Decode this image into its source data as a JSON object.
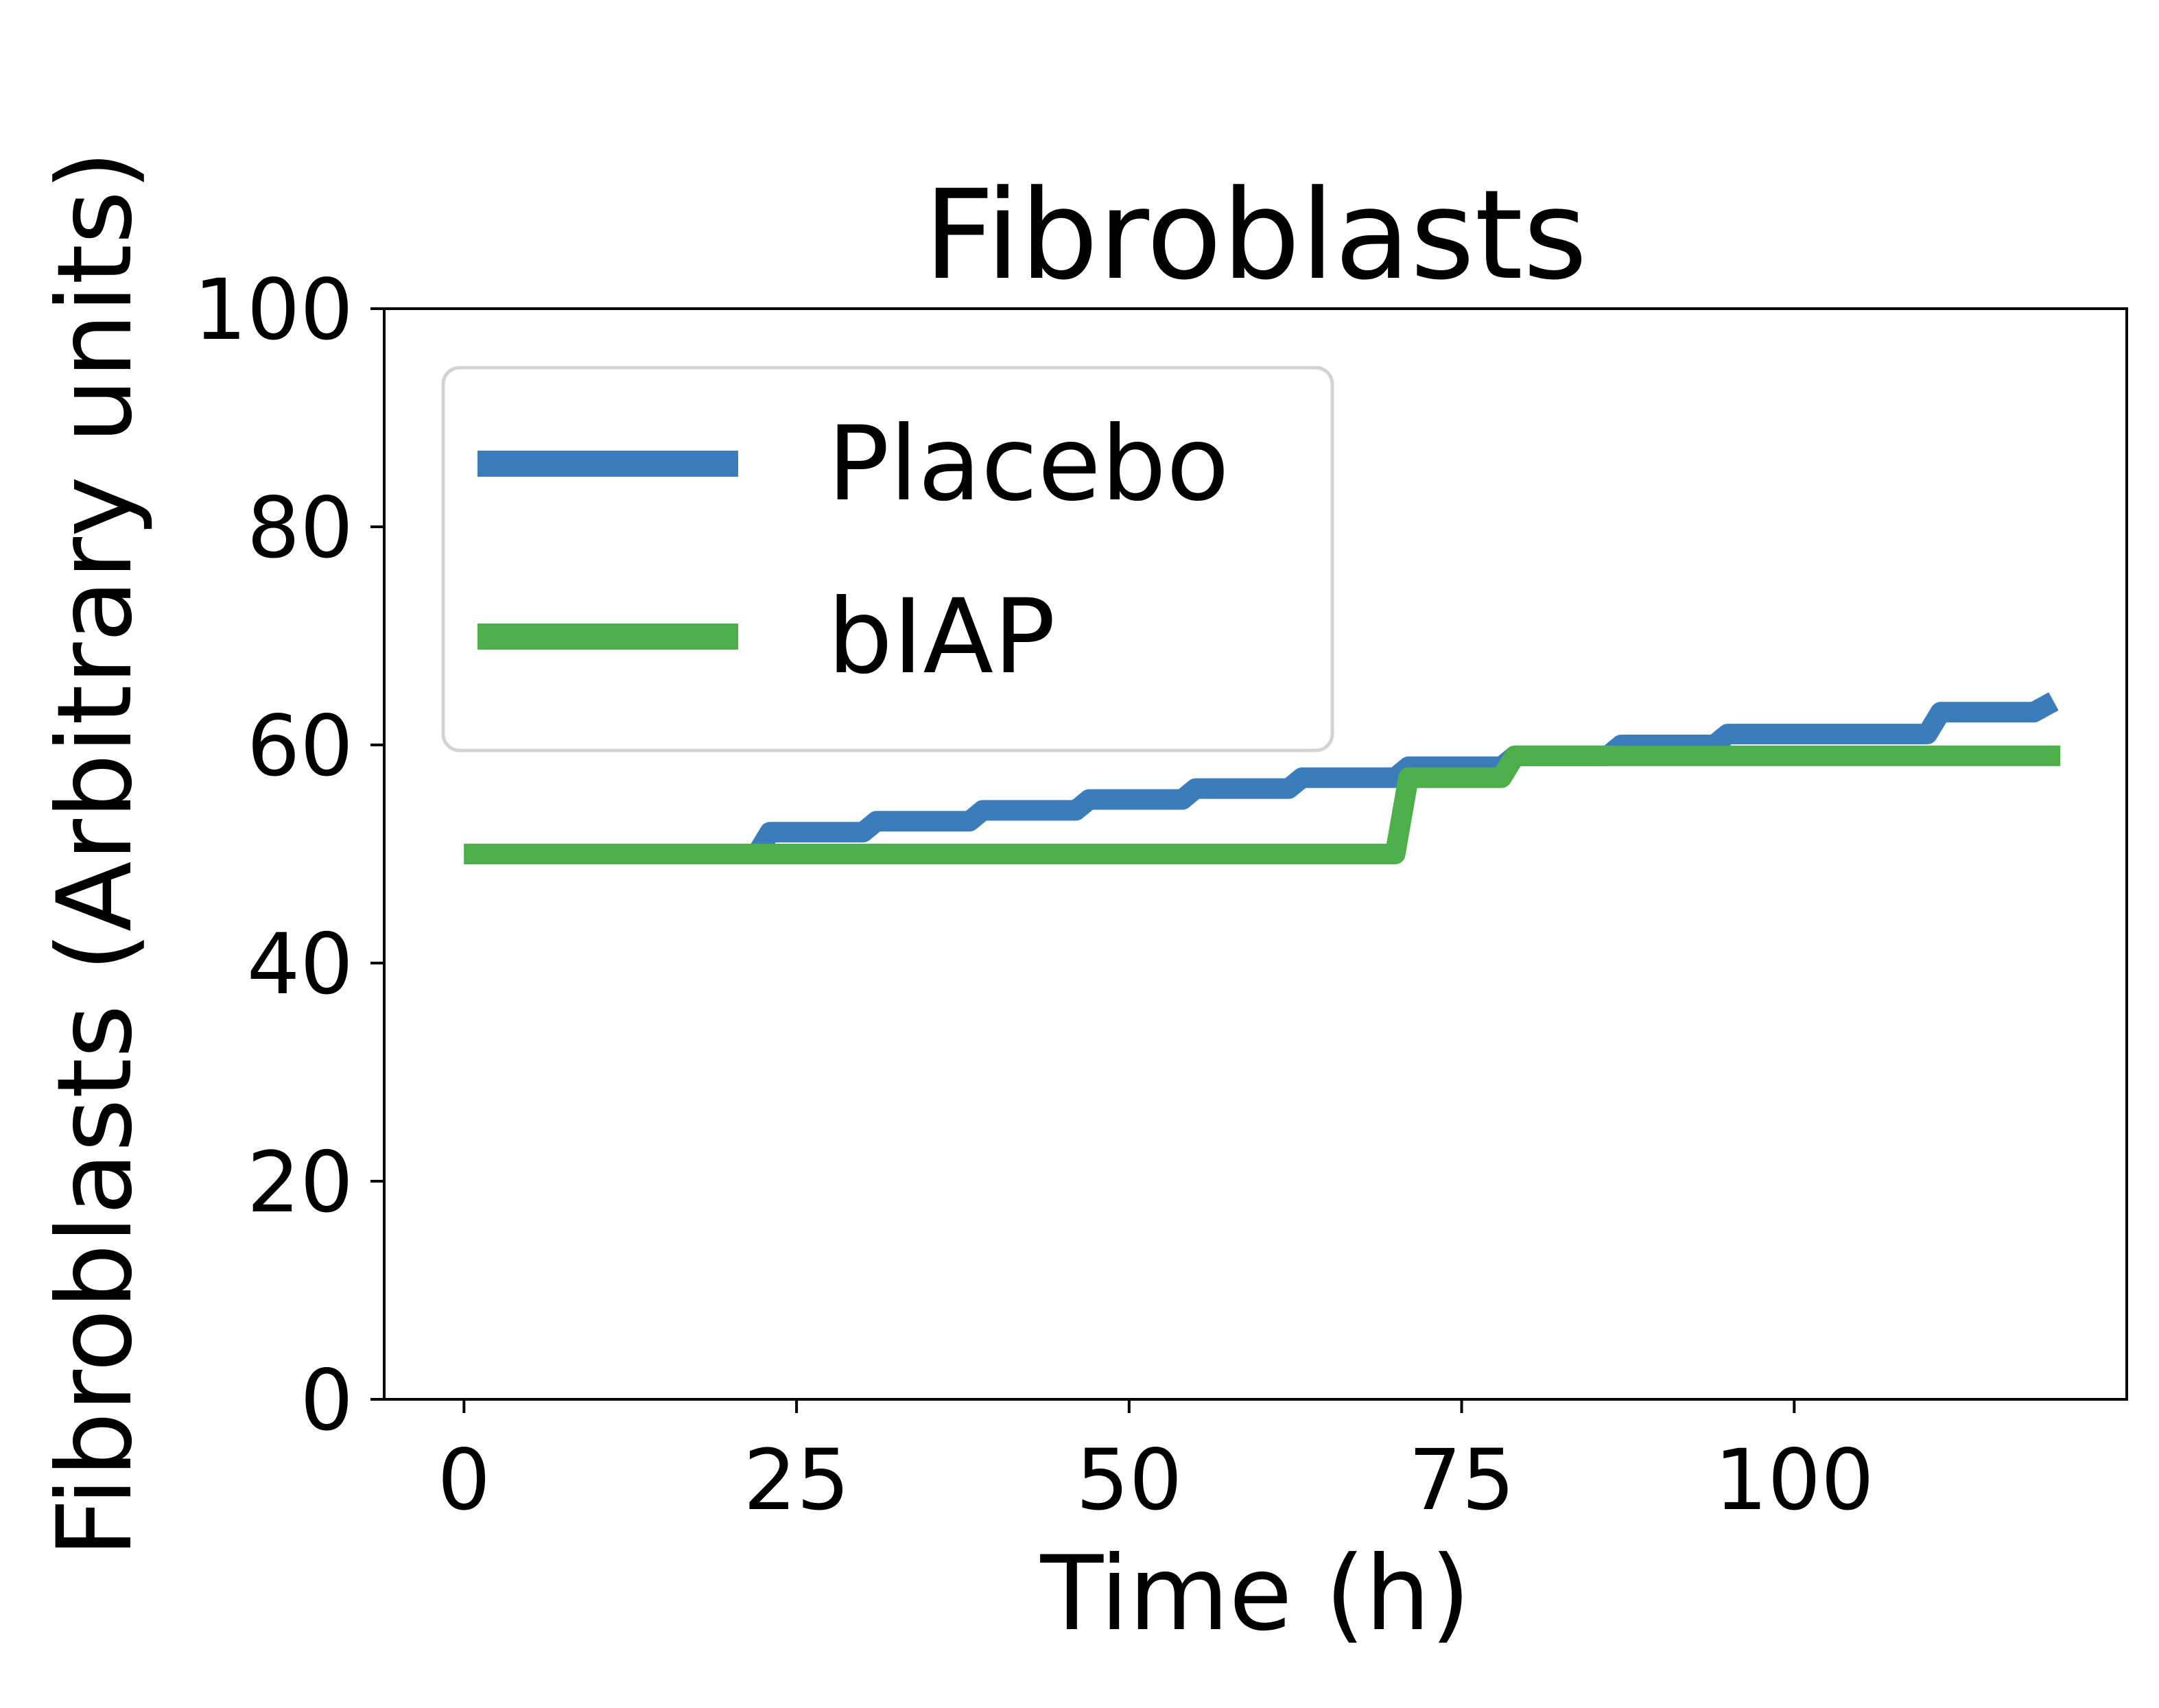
{
  "chart_data": {
    "type": "line",
    "title": "Fibroblasts",
    "xlabel": "Time (h)",
    "ylabel": "Fibroblasts (Arbitrary units)",
    "xlim": [
      -6,
      125
    ],
    "ylim": [
      0,
      100
    ],
    "xticks": [
      0,
      25,
      50,
      75,
      100
    ],
    "yticks": [
      0,
      20,
      40,
      60,
      80,
      100
    ],
    "grid": false,
    "legend_position": "upper-left",
    "series": [
      {
        "name": "Placebo",
        "color": "#3a7dba",
        "x": [
          0,
          22,
          23,
          30,
          31,
          38,
          39,
          46,
          47,
          54,
          55,
          62,
          63,
          70,
          71,
          78,
          79,
          86,
          87,
          94,
          95,
          110,
          111,
          118,
          119.5
        ],
        "y": [
          50,
          50,
          52,
          52,
          53,
          53,
          54,
          54,
          55,
          55,
          56,
          56,
          57,
          57,
          58,
          58,
          59,
          59,
          60,
          60,
          61,
          61,
          63,
          63,
          64
        ]
      },
      {
        "name": "bIAP",
        "color": "#4daf4a",
        "x": [
          0,
          70,
          71,
          78,
          79,
          120
        ],
        "y": [
          50,
          50,
          57,
          57,
          59,
          59
        ]
      }
    ]
  }
}
